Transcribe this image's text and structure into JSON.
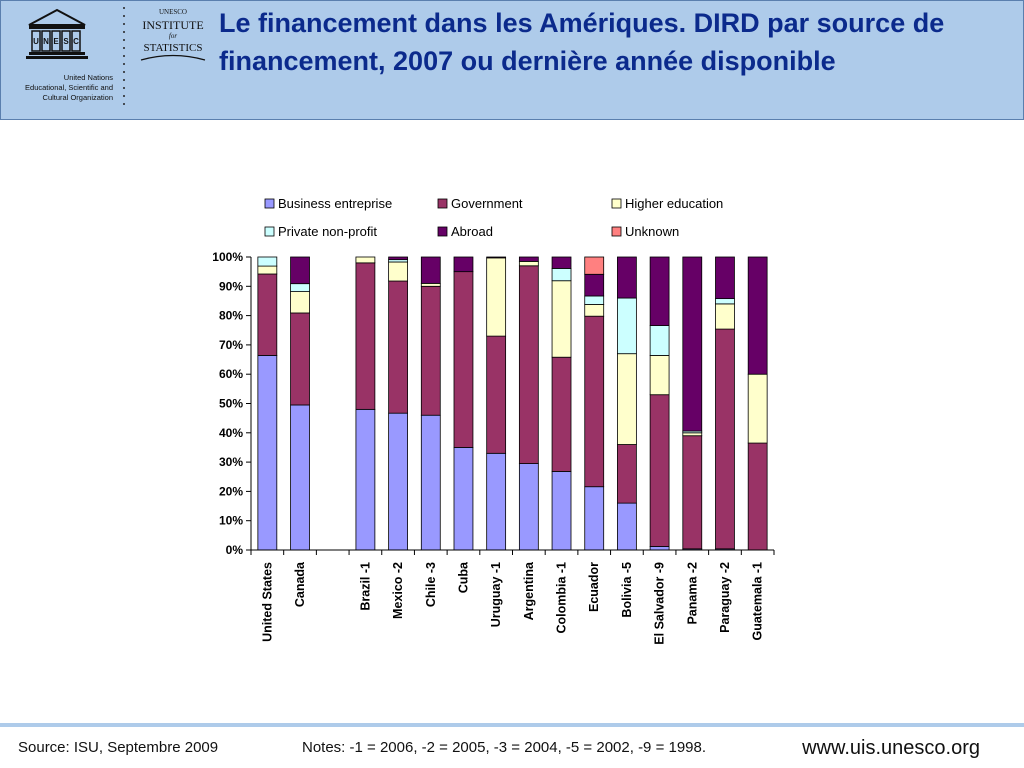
{
  "header": {
    "title": "Le financement dans les Amériques. DIRD par source de financement, 2007 ou dernière année disponible",
    "logo_text": "UNESCO",
    "org_lines": [
      "United Nations",
      "Educational, Scientific and",
      "Cultural Organization"
    ],
    "institute_lines": [
      "UNESCO",
      "INSTITUTE",
      "for",
      "STATISTICS"
    ]
  },
  "footer": {
    "source": "Source: ISU, Septembre 2009",
    "notes": "Notes: -1 = 2006, -2 = 2005, -3 = 2004, -5 = 2002, -9 = 1998.",
    "website": "www.uis.unesco.org"
  },
  "colors": {
    "header_bg": "#aecbea",
    "title": "#0b2a8c"
  },
  "chart_data": {
    "type": "bar",
    "stacked": true,
    "percent": true,
    "title": "",
    "xlabel": "",
    "ylabel": "",
    "ylim": [
      0,
      100
    ],
    "yticks": [
      "0%",
      "10%",
      "20%",
      "30%",
      "40%",
      "50%",
      "60%",
      "70%",
      "80%",
      "90%",
      "100%"
    ],
    "grid": false,
    "legend_position": "top",
    "categories": [
      "United States",
      "Canada",
      "",
      "Brazil -1",
      "Mexico -2",
      "Chile -3",
      "Cuba",
      "Uruguay -1",
      "Argentina",
      "Colombia -1",
      "Ecuador",
      "Bolivia -5",
      "El Salvador -9",
      "Panama -2",
      "Paraguay -2",
      "Guatemala -1"
    ],
    "series": [
      {
        "name": "Business entreprise",
        "color": "#9999ff",
        "values": [
          66.4,
          49.5,
          null,
          48.0,
          46.7,
          46.0,
          35.0,
          33.0,
          29.5,
          26.8,
          21.6,
          16.0,
          1.2,
          0.4,
          0.4,
          0
        ]
      },
      {
        "name": "Government",
        "color": "#993366",
        "values": [
          27.8,
          31.4,
          null,
          50.0,
          45.1,
          44.0,
          60.0,
          40.0,
          67.5,
          39.0,
          58.2,
          20.0,
          51.8,
          38.6,
          75.0,
          36.5
        ]
      },
      {
        "name": "Higher education",
        "color": "#ffffcc",
        "values": [
          2.7,
          7.3,
          null,
          2.0,
          6.5,
          1.0,
          0,
          26.7,
          1.5,
          26.1,
          4.0,
          31.0,
          13.4,
          1.0,
          8.6,
          23.5
        ]
      },
      {
        "name": "Private non-profit",
        "color": "#ccffff",
        "values": [
          3.1,
          2.7,
          null,
          0,
          0.8,
          0,
          0,
          0,
          0,
          4.2,
          2.9,
          19.0,
          10.2,
          0.6,
          1.8,
          0
        ]
      },
      {
        "name": "Abroad",
        "color": "#660066",
        "values": [
          0,
          9.1,
          null,
          0,
          0.9,
          9.0,
          5.0,
          0.3,
          1.5,
          3.9,
          7.4,
          14.0,
          23.4,
          59.4,
          14.2,
          40.0
        ]
      },
      {
        "name": "Unknown",
        "color": "#ff8080",
        "values": [
          0,
          0,
          null,
          0,
          0,
          0,
          0,
          0,
          0,
          0,
          5.9,
          0,
          0,
          0,
          0,
          0
        ]
      }
    ]
  }
}
